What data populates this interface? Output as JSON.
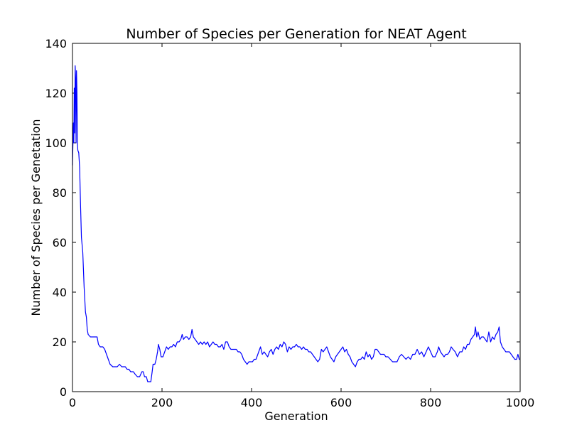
{
  "chart_data": {
    "type": "line",
    "title": "Number of Species per Generation for NEAT Agent",
    "xlabel": "Generation",
    "ylabel": "Number of Species per Genetation",
    "xlim": [
      0,
      1000
    ],
    "ylim": [
      0,
      140
    ],
    "xticks": [
      0,
      200,
      400,
      600,
      800,
      1000
    ],
    "yticks": [
      0,
      20,
      40,
      60,
      80,
      100,
      120,
      140
    ],
    "grid": false,
    "colors": {
      "series": "#0000ff",
      "axes": "#000000"
    },
    "series": [
      {
        "points": [
          [
            0,
            91
          ],
          [
            2,
            108
          ],
          [
            3,
            100
          ],
          [
            4,
            122
          ],
          [
            5,
            104
          ],
          [
            6,
            131
          ],
          [
            7,
            126
          ],
          [
            8,
            100
          ],
          [
            9,
            129
          ],
          [
            10,
            120
          ],
          [
            11,
            100
          ],
          [
            12,
            97
          ],
          [
            14,
            96
          ],
          [
            16,
            90
          ],
          [
            18,
            75
          ],
          [
            20,
            62
          ],
          [
            23,
            56
          ],
          [
            26,
            42
          ],
          [
            29,
            32
          ],
          [
            31,
            30
          ],
          [
            33,
            25
          ],
          [
            35,
            23
          ],
          [
            40,
            22
          ],
          [
            45,
            22
          ],
          [
            50,
            22
          ],
          [
            55,
            22
          ],
          [
            58,
            19
          ],
          [
            62,
            18
          ],
          [
            68,
            18
          ],
          [
            72,
            17
          ],
          [
            76,
            15
          ],
          [
            80,
            13
          ],
          [
            84,
            11
          ],
          [
            90,
            10
          ],
          [
            100,
            10
          ],
          [
            105,
            11
          ],
          [
            110,
            10
          ],
          [
            118,
            10
          ],
          [
            122,
            9
          ],
          [
            126,
            9
          ],
          [
            130,
            8
          ],
          [
            136,
            8
          ],
          [
            140,
            7
          ],
          [
            145,
            6
          ],
          [
            150,
            6
          ],
          [
            155,
            8
          ],
          [
            158,
            8
          ],
          [
            161,
            6
          ],
          [
            165,
            6
          ],
          [
            168,
            4
          ],
          [
            175,
            4
          ],
          [
            178,
            8
          ],
          [
            180,
            11
          ],
          [
            184,
            11
          ],
          [
            187,
            13
          ],
          [
            190,
            16
          ],
          [
            192,
            19
          ],
          [
            195,
            17
          ],
          [
            198,
            14
          ],
          [
            202,
            14
          ],
          [
            206,
            16
          ],
          [
            210,
            18
          ],
          [
            214,
            17
          ],
          [
            218,
            18
          ],
          [
            222,
            18
          ],
          [
            226,
            19
          ],
          [
            230,
            18
          ],
          [
            234,
            20
          ],
          [
            238,
            20
          ],
          [
            242,
            21
          ],
          [
            245,
            23
          ],
          [
            248,
            21
          ],
          [
            252,
            22
          ],
          [
            256,
            22
          ],
          [
            260,
            21
          ],
          [
            264,
            22
          ],
          [
            267,
            25
          ],
          [
            270,
            22
          ],
          [
            274,
            21
          ],
          [
            278,
            20
          ],
          [
            282,
            19
          ],
          [
            286,
            20
          ],
          [
            290,
            19
          ],
          [
            294,
            20
          ],
          [
            298,
            19
          ],
          [
            302,
            20
          ],
          [
            306,
            18
          ],
          [
            310,
            19
          ],
          [
            314,
            20
          ],
          [
            318,
            19
          ],
          [
            322,
            19
          ],
          [
            326,
            18
          ],
          [
            330,
            18
          ],
          [
            334,
            19
          ],
          [
            338,
            17
          ],
          [
            342,
            20
          ],
          [
            346,
            20
          ],
          [
            350,
            18
          ],
          [
            354,
            17
          ],
          [
            358,
            17
          ],
          [
            362,
            17
          ],
          [
            366,
            17
          ],
          [
            370,
            16
          ],
          [
            374,
            16
          ],
          [
            378,
            15
          ],
          [
            382,
            13
          ],
          [
            386,
            12
          ],
          [
            390,
            11
          ],
          [
            394,
            12
          ],
          [
            398,
            12
          ],
          [
            402,
            12
          ],
          [
            406,
            13
          ],
          [
            410,
            13
          ],
          [
            414,
            15
          ],
          [
            418,
            17
          ],
          [
            420,
            18
          ],
          [
            424,
            15
          ],
          [
            428,
            16
          ],
          [
            432,
            15
          ],
          [
            436,
            14
          ],
          [
            440,
            16
          ],
          [
            444,
            17
          ],
          [
            448,
            15
          ],
          [
            452,
            17
          ],
          [
            456,
            18
          ],
          [
            460,
            17
          ],
          [
            464,
            19
          ],
          [
            468,
            18
          ],
          [
            472,
            20
          ],
          [
            476,
            19
          ],
          [
            480,
            16
          ],
          [
            484,
            18
          ],
          [
            488,
            17
          ],
          [
            492,
            18
          ],
          [
            496,
            18
          ],
          [
            500,
            19
          ],
          [
            504,
            18
          ],
          [
            508,
            18
          ],
          [
            512,
            17
          ],
          [
            516,
            18
          ],
          [
            520,
            17
          ],
          [
            524,
            17
          ],
          [
            528,
            16
          ],
          [
            532,
            16
          ],
          [
            536,
            15
          ],
          [
            540,
            14
          ],
          [
            544,
            13
          ],
          [
            548,
            12
          ],
          [
            552,
            13
          ],
          [
            556,
            17
          ],
          [
            560,
            16
          ],
          [
            564,
            17
          ],
          [
            568,
            18
          ],
          [
            572,
            16
          ],
          [
            576,
            14
          ],
          [
            580,
            13
          ],
          [
            584,
            12
          ],
          [
            588,
            14
          ],
          [
            592,
            15
          ],
          [
            596,
            16
          ],
          [
            600,
            17
          ],
          [
            604,
            18
          ],
          [
            608,
            16
          ],
          [
            612,
            17
          ],
          [
            616,
            15
          ],
          [
            620,
            14
          ],
          [
            624,
            12
          ],
          [
            628,
            11
          ],
          [
            632,
            10
          ],
          [
            636,
            12
          ],
          [
            640,
            13
          ],
          [
            644,
            13
          ],
          [
            648,
            14
          ],
          [
            652,
            13
          ],
          [
            656,
            16
          ],
          [
            660,
            14
          ],
          [
            664,
            15
          ],
          [
            668,
            13
          ],
          [
            672,
            14
          ],
          [
            676,
            17
          ],
          [
            680,
            17
          ],
          [
            684,
            16
          ],
          [
            688,
            15
          ],
          [
            692,
            15
          ],
          [
            696,
            15
          ],
          [
            700,
            14
          ],
          [
            705,
            14
          ],
          [
            710,
            13
          ],
          [
            715,
            12
          ],
          [
            720,
            12
          ],
          [
            725,
            12
          ],
          [
            730,
            14
          ],
          [
            735,
            15
          ],
          [
            740,
            14
          ],
          [
            745,
            13
          ],
          [
            750,
            14
          ],
          [
            755,
            13
          ],
          [
            760,
            15
          ],
          [
            765,
            15
          ],
          [
            770,
            17
          ],
          [
            775,
            15
          ],
          [
            780,
            16
          ],
          [
            785,
            14
          ],
          [
            790,
            16
          ],
          [
            795,
            18
          ],
          [
            800,
            16
          ],
          [
            805,
            14
          ],
          [
            810,
            14
          ],
          [
            815,
            16
          ],
          [
            818,
            18
          ],
          [
            822,
            16
          ],
          [
            826,
            15
          ],
          [
            830,
            14
          ],
          [
            834,
            15
          ],
          [
            838,
            15
          ],
          [
            842,
            16
          ],
          [
            846,
            18
          ],
          [
            850,
            17
          ],
          [
            855,
            16
          ],
          [
            860,
            14
          ],
          [
            865,
            16
          ],
          [
            870,
            16
          ],
          [
            874,
            18
          ],
          [
            878,
            17
          ],
          [
            882,
            19
          ],
          [
            886,
            19
          ],
          [
            890,
            21
          ],
          [
            894,
            22
          ],
          [
            898,
            23
          ],
          [
            900,
            26
          ],
          [
            903,
            22
          ],
          [
            906,
            24
          ],
          [
            910,
            21
          ],
          [
            914,
            22
          ],
          [
            918,
            22
          ],
          [
            922,
            21
          ],
          [
            926,
            20
          ],
          [
            930,
            24
          ],
          [
            934,
            20
          ],
          [
            938,
            22
          ],
          [
            942,
            21
          ],
          [
            946,
            23
          ],
          [
            950,
            24
          ],
          [
            953,
            26
          ],
          [
            956,
            20
          ],
          [
            960,
            18
          ],
          [
            964,
            17
          ],
          [
            968,
            16
          ],
          [
            972,
            16
          ],
          [
            976,
            16
          ],
          [
            980,
            15
          ],
          [
            984,
            14
          ],
          [
            988,
            13
          ],
          [
            992,
            13
          ],
          [
            995,
            15
          ],
          [
            998,
            13
          ],
          [
            1000,
            13
          ]
        ]
      }
    ]
  }
}
